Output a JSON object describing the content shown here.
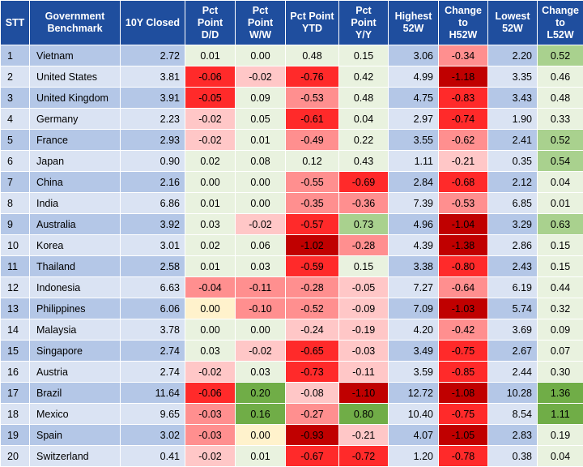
{
  "colors": {
    "header_bg": "#1f4e9e",
    "odd_row_bg": "#b4c7e7",
    "even_row_bg": "#dae3f3",
    "neutral_cell": "#e9f2df",
    "positive_light": "#e2efd9",
    "positive_mid": "#a9d18e",
    "positive_strong": "#70ad47",
    "negative_light": "#ffc7c7",
    "negative_mid": "#ff8f8f",
    "negative_strong": "#ff2a2a",
    "negative_darkest": "#c00000",
    "zero_yellow": "#fff2cc"
  },
  "headers": [
    "STT",
    "Government\nBenchmark",
    "10Y Closed",
    "Pct\nPoint\nD/D",
    "Pct\nPoint\nW/W",
    "Pct Point\nYTD",
    "Pct\nPoint\nY/Y",
    "Highest\n52W",
    "Change\nto\nH52W",
    "Lowest\n52W",
    "Change\nto\nL52W"
  ],
  "rows": [
    {
      "stt": "1",
      "name": "Vietnam",
      "close": "2.72",
      "dd": "0.01",
      "ww": "0.00",
      "ytd": "0.48",
      "yy": "0.15",
      "h52": "3.06",
      "chh": "-0.34",
      "l52": "2.20",
      "chl": "0.52"
    },
    {
      "stt": "2",
      "name": "United States",
      "close": "3.81",
      "dd": "-0.06",
      "ww": "-0.02",
      "ytd": "-0.76",
      "yy": "0.42",
      "h52": "4.99",
      "chh": "-1.18",
      "l52": "3.35",
      "chl": "0.46"
    },
    {
      "stt": "3",
      "name": "United Kingdom",
      "close": "3.91",
      "dd": "-0.05",
      "ww": "0.09",
      "ytd": "-0.53",
      "yy": "0.48",
      "h52": "4.75",
      "chh": "-0.83",
      "l52": "3.43",
      "chl": "0.48"
    },
    {
      "stt": "4",
      "name": "Germany",
      "close": "2.23",
      "dd": "-0.02",
      "ww": "0.05",
      "ytd": "-0.61",
      "yy": "0.04",
      "h52": "2.97",
      "chh": "-0.74",
      "l52": "1.90",
      "chl": "0.33"
    },
    {
      "stt": "5",
      "name": "France",
      "close": "2.93",
      "dd": "-0.02",
      "ww": "0.01",
      "ytd": "-0.49",
      "yy": "0.22",
      "h52": "3.55",
      "chh": "-0.62",
      "l52": "2.41",
      "chl": "0.52"
    },
    {
      "stt": "6",
      "name": "Japan",
      "close": "0.90",
      "dd": "0.02",
      "ww": "0.08",
      "ytd": "0.12",
      "yy": "0.43",
      "h52": "1.11",
      "chh": "-0.21",
      "l52": "0.35",
      "chl": "0.54"
    },
    {
      "stt": "7",
      "name": "China",
      "close": "2.16",
      "dd": "0.00",
      "ww": "0.00",
      "ytd": "-0.55",
      "yy": "-0.69",
      "h52": "2.84",
      "chh": "-0.68",
      "l52": "2.12",
      "chl": "0.04"
    },
    {
      "stt": "8",
      "name": "India",
      "close": "6.86",
      "dd": "0.01",
      "ww": "0.00",
      "ytd": "-0.35",
      "yy": "-0.36",
      "h52": "7.39",
      "chh": "-0.53",
      "l52": "6.85",
      "chl": "0.01"
    },
    {
      "stt": "9",
      "name": "Australia",
      "close": "3.92",
      "dd": "0.03",
      "ww": "-0.02",
      "ytd": "-0.57",
      "yy": "0.73",
      "h52": "4.96",
      "chh": "-1.04",
      "l52": "3.29",
      "chl": "0.63"
    },
    {
      "stt": "10",
      "name": "Korea",
      "close": "3.01",
      "dd": "0.02",
      "ww": "0.06",
      "ytd": "-1.02",
      "yy": "-0.28",
      "h52": "4.39",
      "chh": "-1.38",
      "l52": "2.86",
      "chl": "0.15"
    },
    {
      "stt": "11",
      "name": "Thailand",
      "close": "2.58",
      "dd": "0.01",
      "ww": "0.03",
      "ytd": "-0.59",
      "yy": "0.15",
      "h52": "3.38",
      "chh": "-0.80",
      "l52": "2.43",
      "chl": "0.15"
    },
    {
      "stt": "12",
      "name": "Indonesia",
      "close": "6.63",
      "dd": "-0.04",
      "ww": "-0.11",
      "ytd": "-0.28",
      "yy": "-0.05",
      "h52": "7.27",
      "chh": "-0.64",
      "l52": "6.19",
      "chl": "0.44"
    },
    {
      "stt": "13",
      "name": "Philippines",
      "close": "6.06",
      "dd": "0.00",
      "ww": "-0.10",
      "ytd": "-0.52",
      "yy": "-0.09",
      "h52": "7.09",
      "chh": "-1.03",
      "l52": "5.74",
      "chl": "0.32"
    },
    {
      "stt": "14",
      "name": "Malaysia",
      "close": "3.78",
      "dd": "0.00",
      "ww": "0.00",
      "ytd": "-0.24",
      "yy": "-0.19",
      "h52": "4.20",
      "chh": "-0.42",
      "l52": "3.69",
      "chl": "0.09"
    },
    {
      "stt": "15",
      "name": "Singapore",
      "close": "2.74",
      "dd": "0.03",
      "ww": "-0.02",
      "ytd": "-0.65",
      "yy": "-0.03",
      "h52": "3.49",
      "chh": "-0.75",
      "l52": "2.67",
      "chl": "0.07"
    },
    {
      "stt": "16",
      "name": "Austria",
      "close": "2.74",
      "dd": "-0.02",
      "ww": "0.03",
      "ytd": "-0.73",
      "yy": "-0.11",
      "h52": "3.59",
      "chh": "-0.85",
      "l52": "2.44",
      "chl": "0.30"
    },
    {
      "stt": "17",
      "name": "Brazil",
      "close": "11.64",
      "dd": "-0.06",
      "ww": "0.20",
      "ytd": "-0.08",
      "yy": "-1.10",
      "h52": "12.72",
      "chh": "-1.08",
      "l52": "10.28",
      "chl": "1.36"
    },
    {
      "stt": "18",
      "name": "Mexico",
      "close": "9.65",
      "dd": "-0.03",
      "ww": "0.16",
      "ytd": "-0.27",
      "yy": "0.80",
      "h52": "10.40",
      "chh": "-0.75",
      "l52": "8.54",
      "chl": "1.11"
    },
    {
      "stt": "19",
      "name": "Spain",
      "close": "3.02",
      "dd": "-0.03",
      "ww": "0.00",
      "ytd": "-0.93",
      "yy": "-0.21",
      "h52": "4.07",
      "chh": "-1.05",
      "l52": "2.83",
      "chl": "0.19"
    },
    {
      "stt": "20",
      "name": "Switzerland",
      "close": "0.41",
      "dd": "-0.02",
      "ww": "0.01",
      "ytd": "-0.67",
      "yy": "-0.72",
      "h52": "1.20",
      "chh": "-0.78",
      "l52": "0.38",
      "chl": "0.04"
    }
  ]
}
